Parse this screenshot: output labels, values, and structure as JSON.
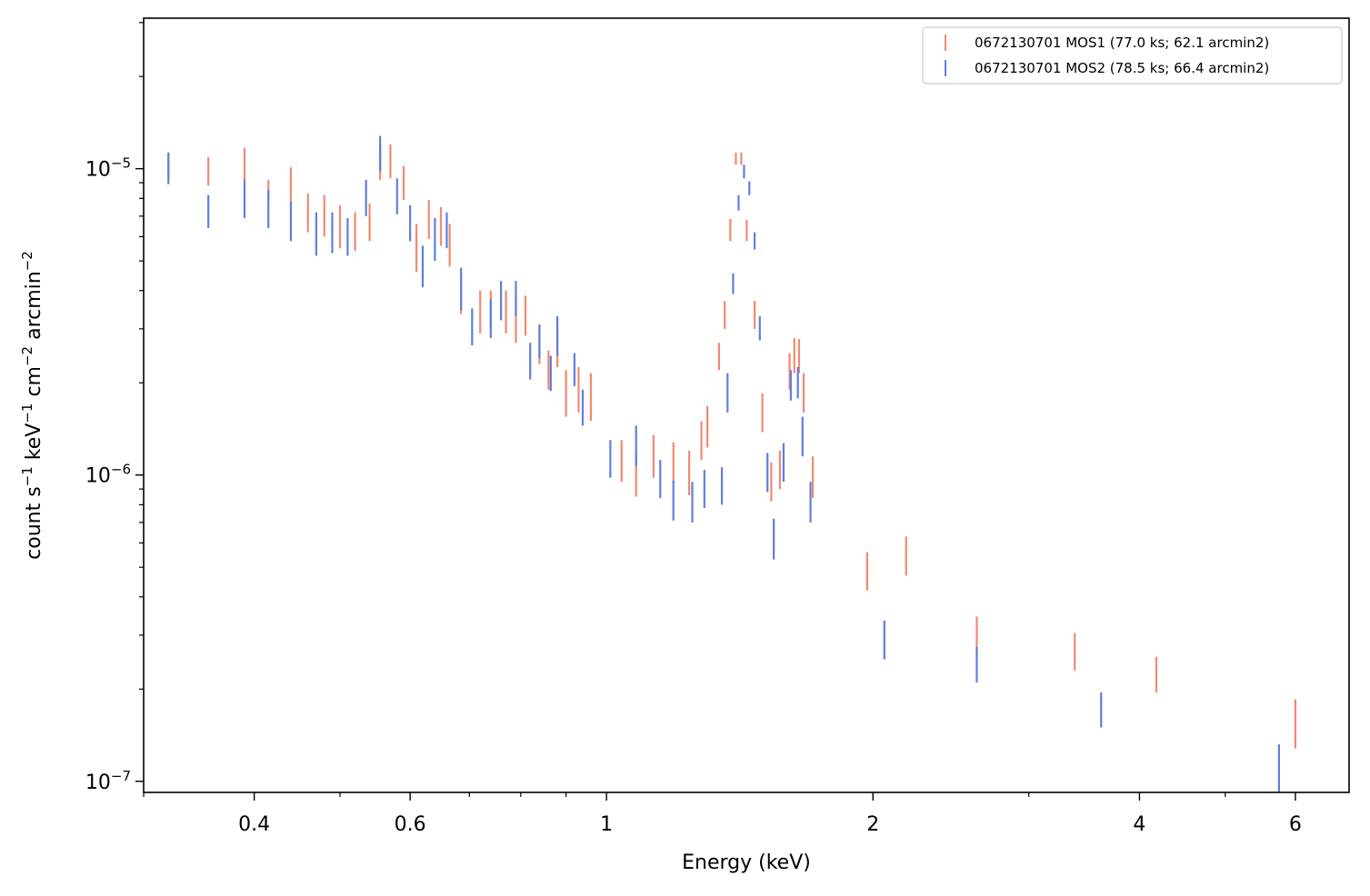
{
  "chart_data": {
    "type": "scatter",
    "style": "vertical-error-bars",
    "xlabel": "Energy (keV)",
    "ylabel": "count s$^{-1}$ keV$^{-1}$ cm$^{-2}$ arcmin$^{-2}$",
    "ylabel_parts": {
      "base1": "count s",
      "sup1": "−1",
      "base2": " keV",
      "sup2": "−1",
      "base3": " cm",
      "sup3": "−2",
      "base4": " arcmin",
      "sup4": "−2"
    },
    "xscale": "log",
    "yscale": "log",
    "xlim": [
      0.3,
      6.9
    ],
    "ylim": [
      9.2e-08,
      3.1e-05
    ],
    "x_ticks": [
      {
        "value": 0.4,
        "label": "0.4"
      },
      {
        "value": 0.6,
        "label": "0.6"
      },
      {
        "value": 1,
        "label": "1"
      },
      {
        "value": 2,
        "label": "2"
      },
      {
        "value": 4,
        "label": "4"
      },
      {
        "value": 6,
        "label": "6"
      }
    ],
    "y_ticks": [
      {
        "value": 1e-05,
        "base": "10",
        "exp": "−5"
      },
      {
        "value": 1e-06,
        "base": "10",
        "exp": "−6"
      },
      {
        "value": 1e-07,
        "base": "10",
        "exp": "−7"
      }
    ],
    "legend": {
      "position": "top-right"
    },
    "series": [
      {
        "name": "0672130701 MOS1 (77.0 ks; 62.1 arcmin2)",
        "color": "#f08a70",
        "points": [
          [
            0.32,
            1.02e-05,
            9.2e-06,
            1.12e-05
          ],
          [
            0.355,
            9.8e-06,
            8.8e-06,
            1.09e-05
          ],
          [
            0.39,
            1.04e-05,
            9.1e-06,
            1.17e-05
          ],
          [
            0.415,
            8.5e-06,
            7.8e-06,
            9.2e-06
          ],
          [
            0.44,
            8.8e-06,
            7.6e-06,
            1.01e-05
          ],
          [
            0.46,
            7.2e-06,
            6.2e-06,
            8.3e-06
          ],
          [
            0.48,
            7e-06,
            6e-06,
            8.2e-06
          ],
          [
            0.5,
            6.5e-06,
            5.5e-06,
            7.6e-06
          ],
          [
            0.52,
            6.3e-06,
            5.4e-06,
            7.2e-06
          ],
          [
            0.54,
            6.7e-06,
            5.8e-06,
            7.7e-06
          ],
          [
            0.555,
            1.05e-05,
            9.2e-06,
            1.2e-05
          ],
          [
            0.57,
            1.06e-05,
            9.3e-06,
            1.2e-05
          ],
          [
            0.59,
            9e-06,
            7.9e-06,
            1.02e-05
          ],
          [
            0.61,
            5.5e-06,
            4.6e-06,
            6.6e-06
          ],
          [
            0.63,
            6.8e-06,
            5.9e-06,
            7.9e-06
          ],
          [
            0.65,
            6.5e-06,
            5.6e-06,
            7.5e-06
          ],
          [
            0.665,
            5.6e-06,
            4.8e-06,
            6.6e-06
          ],
          [
            0.685,
            3.9e-06,
            3.35e-06,
            4.5e-06
          ],
          [
            0.72,
            3.4e-06,
            2.9e-06,
            4e-06
          ],
          [
            0.74,
            3.5e-06,
            3e-06,
            4e-06
          ],
          [
            0.77,
            3.4e-06,
            2.9e-06,
            4e-06
          ],
          [
            0.79,
            3.1e-06,
            2.7e-06,
            3.65e-06
          ],
          [
            0.81,
            3.3e-06,
            2.85e-06,
            3.85e-06
          ],
          [
            0.84,
            2.7e-06,
            2.3e-06,
            3.1e-06
          ],
          [
            0.86,
            2.2e-06,
            1.9e-06,
            2.55e-06
          ],
          [
            0.88,
            2.6e-06,
            2.25e-06,
            3e-06
          ],
          [
            0.9,
            1.85e-06,
            1.55e-06,
            2.2e-06
          ],
          [
            0.93,
            1.9e-06,
            1.6e-06,
            2.25e-06
          ],
          [
            0.96,
            1.8e-06,
            1.5e-06,
            2.15e-06
          ],
          [
            1.04,
            1.1e-06,
            9.5e-07,
            1.3e-06
          ],
          [
            1.08,
            1e-06,
            8.5e-07,
            1.17e-06
          ],
          [
            1.13,
            1.15e-06,
            9.8e-07,
            1.35e-06
          ],
          [
            1.19,
            1.1e-06,
            9.4e-07,
            1.28e-06
          ],
          [
            1.24,
            1e-06,
            8.6e-07,
            1.2e-06
          ],
          [
            1.28,
            1.3e-06,
            1.12e-06,
            1.5e-06
          ],
          [
            1.3,
            1.45e-06,
            1.23e-06,
            1.68e-06
          ],
          [
            1.34,
            2.45e-06,
            2.2e-06,
            2.7e-06
          ],
          [
            1.36,
            3.3e-06,
            3e-06,
            3.7e-06
          ],
          [
            1.38,
            6.3e-06,
            5.8e-06,
            6.85e-06
          ],
          [
            1.4,
            1.08e-05,
            1.03e-05,
            1.13e-05
          ],
          [
            1.42,
            1.08e-05,
            1.03e-05,
            1.13e-05
          ],
          [
            1.44,
            6.3e-06,
            5.8e-06,
            6.8e-06
          ],
          [
            1.47,
            3.3e-06,
            3e-06,
            3.7e-06
          ],
          [
            1.5,
            1.6e-06,
            1.38e-06,
            1.85e-06
          ],
          [
            1.535,
            9.5e-07,
            8.2e-07,
            1.1e-06
          ],
          [
            1.57,
            1.05e-06,
            9e-07,
            1.2e-06
          ],
          [
            1.61,
            2.2e-06,
            1.9e-06,
            2.5e-06
          ],
          [
            1.63,
            2.45e-06,
            2.15e-06,
            2.8e-06
          ],
          [
            1.65,
            2.45e-06,
            2.15e-06,
            2.78e-06
          ],
          [
            1.67,
            1.85e-06,
            1.6e-06,
            2.15e-06
          ],
          [
            1.71,
            9.8e-07,
            8.4e-07,
            1.15e-06
          ],
          [
            1.97,
            4.9e-07,
            4.2e-07,
            5.6e-07
          ],
          [
            2.18,
            5.5e-07,
            4.7e-07,
            6.3e-07
          ],
          [
            2.62,
            3e-07,
            2.6e-07,
            3.45e-07
          ],
          [
            3.38,
            2.65e-07,
            2.3e-07,
            3.05e-07
          ],
          [
            4.18,
            2.2e-07,
            1.95e-07,
            2.55e-07
          ],
          [
            6.0,
            1.55e-07,
            1.28e-07,
            1.85e-07
          ]
        ]
      },
      {
        "name": "0672130701 MOS2 (78.5 ks; 66.4 arcmin2)",
        "color": "#5f7fdc",
        "points": [
          [
            0.32,
            1e-05,
            8.9e-06,
            1.13e-05
          ],
          [
            0.355,
            7.2e-06,
            6.4e-06,
            8.2e-06
          ],
          [
            0.39,
            8e-06,
            6.9e-06,
            9.2e-06
          ],
          [
            0.415,
            7.3e-06,
            6.4e-06,
            8.5e-06
          ],
          [
            0.44,
            6.7e-06,
            5.8e-06,
            7.8e-06
          ],
          [
            0.47,
            6.2e-06,
            5.2e-06,
            7.2e-06
          ],
          [
            0.49,
            6.2e-06,
            5.3e-06,
            7.2e-06
          ],
          [
            0.51,
            6e-06,
            5.2e-06,
            6.9e-06
          ],
          [
            0.535,
            8e-06,
            7e-06,
            9.2e-06
          ],
          [
            0.555,
            1.12e-05,
            9.8e-06,
            1.28e-05
          ],
          [
            0.58,
            8.1e-06,
            7.1e-06,
            9.3e-06
          ],
          [
            0.6,
            6.6e-06,
            5.8e-06,
            7.6e-06
          ],
          [
            0.62,
            4.8e-06,
            4.1e-06,
            5.6e-06
          ],
          [
            0.64,
            5.9e-06,
            5e-06,
            6.9e-06
          ],
          [
            0.66,
            6.3e-06,
            5.5e-06,
            7.2e-06
          ],
          [
            0.685,
            4.05e-06,
            3.45e-06,
            4.75e-06
          ],
          [
            0.705,
            3.05e-06,
            2.65e-06,
            3.5e-06
          ],
          [
            0.74,
            3.25e-06,
            2.8e-06,
            3.75e-06
          ],
          [
            0.76,
            3.7e-06,
            3.2e-06,
            4.3e-06
          ],
          [
            0.79,
            3.75e-06,
            3.3e-06,
            4.3e-06
          ],
          [
            0.82,
            2.35e-06,
            2.05e-06,
            2.7e-06
          ],
          [
            0.84,
            2.75e-06,
            2.4e-06,
            3.1e-06
          ],
          [
            0.865,
            2.15e-06,
            1.88e-06,
            2.45e-06
          ],
          [
            0.88,
            2.85e-06,
            2.45e-06,
            3.3e-06
          ],
          [
            0.92,
            2.2e-06,
            1.95e-06,
            2.5e-06
          ],
          [
            0.94,
            1.65e-06,
            1.45e-06,
            1.9e-06
          ],
          [
            1.01,
            1.13e-06,
            9.8e-07,
            1.3e-06
          ],
          [
            1.08,
            1.25e-06,
            1.07e-06,
            1.45e-06
          ],
          [
            1.15,
            9.7e-07,
            8.4e-07,
            1.12e-06
          ],
          [
            1.19,
            8.3e-07,
            7.1e-07,
            9.6e-07
          ],
          [
            1.25,
            8.2e-07,
            7e-07,
            9.5e-07
          ],
          [
            1.29,
            9e-07,
            7.8e-07,
            1.04e-06
          ],
          [
            1.35,
            9.2e-07,
            8e-07,
            1.06e-06
          ],
          [
            1.37,
            1.85e-06,
            1.6e-06,
            2.15e-06
          ],
          [
            1.39,
            4.2e-06,
            3.9e-06,
            4.55e-06
          ],
          [
            1.41,
            7.7e-06,
            7.3e-06,
            8.2e-06
          ],
          [
            1.43,
            9.8e-06,
            9.3e-06,
            1.03e-05
          ],
          [
            1.45,
            8.6e-06,
            8.2e-06,
            9.1e-06
          ],
          [
            1.47,
            5.8e-06,
            5.45e-06,
            6.2e-06
          ],
          [
            1.49,
            3e-06,
            2.75e-06,
            3.3e-06
          ],
          [
            1.52,
            1.03e-06,
            8.8e-07,
            1.18e-06
          ],
          [
            1.545,
            6.2e-07,
            5.3e-07,
            7.2e-07
          ],
          [
            1.585,
            1.1e-06,
            9.5e-07,
            1.27e-06
          ],
          [
            1.615,
            1.95e-06,
            1.75e-06,
            2.2e-06
          ],
          [
            1.645,
            2e-06,
            1.78e-06,
            2.25e-06
          ],
          [
            1.665,
            1.35e-06,
            1.15e-06,
            1.55e-06
          ],
          [
            1.7,
            8.2e-07,
            7e-07,
            9.5e-07
          ],
          [
            2.06,
            2.9e-07,
            2.5e-07,
            3.35e-07
          ],
          [
            2.62,
            2.4e-07,
            2.1e-07,
            2.75e-07
          ],
          [
            3.62,
            1.72e-07,
            1.5e-07,
            1.95e-07
          ],
          [
            5.75,
            1.1e-07,
            9.2e-08,
            1.32e-07
          ]
        ]
      }
    ]
  }
}
